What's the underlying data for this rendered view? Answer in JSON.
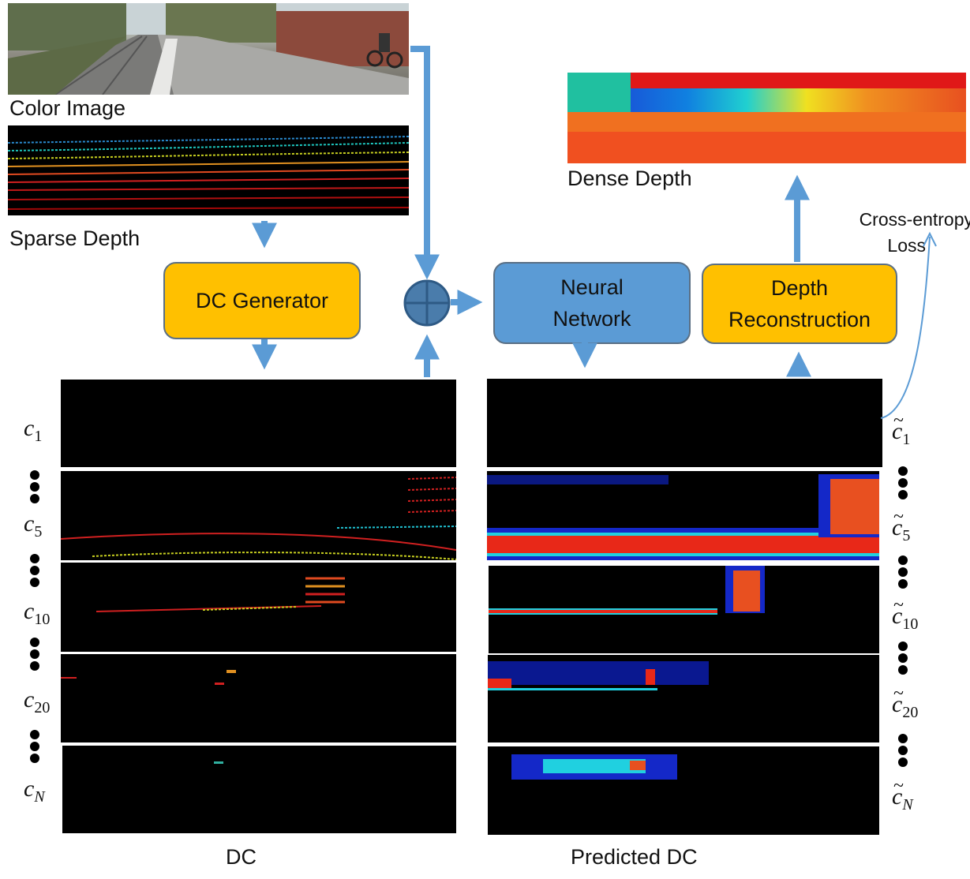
{
  "labels": {
    "color_image": "Color Image",
    "sparse_depth": "Sparse Depth",
    "dense_depth": "Dense Depth",
    "cross_entropy_1": "Cross-entropy",
    "cross_entropy_2": "Loss",
    "dc": "DC",
    "predicted_dc": "Predicted DC"
  },
  "boxes": {
    "dc_generator": "DC Generator",
    "neural_network_1": "Neural",
    "neural_network_2": "Network",
    "depth_reconstruction_1": "Depth",
    "depth_reconstruction_2": "Reconstruction"
  },
  "channels": {
    "left": [
      {
        "base": "c",
        "sub": "1"
      },
      {
        "base": "c",
        "sub": "5"
      },
      {
        "base": "c",
        "sub": "10"
      },
      {
        "base": "c",
        "sub": "20"
      },
      {
        "base": "c",
        "sub": "N"
      }
    ],
    "right": [
      {
        "base": "c",
        "sub": "1"
      },
      {
        "base": "c",
        "sub": "5"
      },
      {
        "base": "c",
        "sub": "10"
      },
      {
        "base": "c",
        "sub": "20"
      },
      {
        "base": "c",
        "sub": "N"
      }
    ],
    "tilde": "~"
  },
  "colors": {
    "arrow": "#5b9bd5",
    "orange_box": "#ffc000",
    "blue_box": "#5b9bd5",
    "box_border": "#5a6f84"
  }
}
